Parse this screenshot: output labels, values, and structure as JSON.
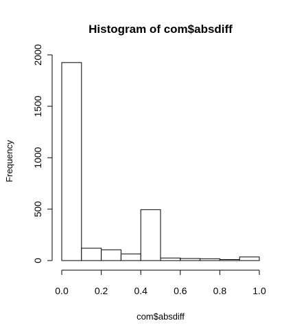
{
  "chart_data": {
    "type": "bar",
    "title": "Histogram of com$absdiff",
    "xlabel": "com$absdiff",
    "ylabel": "Frequency",
    "bin_edges": [
      0.0,
      0.1,
      0.2,
      0.3,
      0.4,
      0.5,
      0.6,
      0.7,
      0.8,
      0.9,
      1.0
    ],
    "values": [
      1925,
      120,
      105,
      65,
      495,
      25,
      20,
      18,
      10,
      35
    ],
    "xlim": [
      0.0,
      1.0
    ],
    "ylim": [
      0,
      2000
    ],
    "x_ticks": [
      0.0,
      0.2,
      0.4,
      0.6,
      0.8,
      1.0
    ],
    "x_tick_labels": [
      "0.0",
      "0.2",
      "0.4",
      "0.6",
      "0.8",
      "1.0"
    ],
    "y_ticks": [
      0,
      500,
      1000,
      1500,
      2000
    ],
    "y_tick_labels": [
      "0",
      "500",
      "1000",
      "1500",
      "2000"
    ],
    "grid": false,
    "colors": {
      "bar_fill": "#ffffff",
      "bar_stroke": "#000000"
    }
  }
}
